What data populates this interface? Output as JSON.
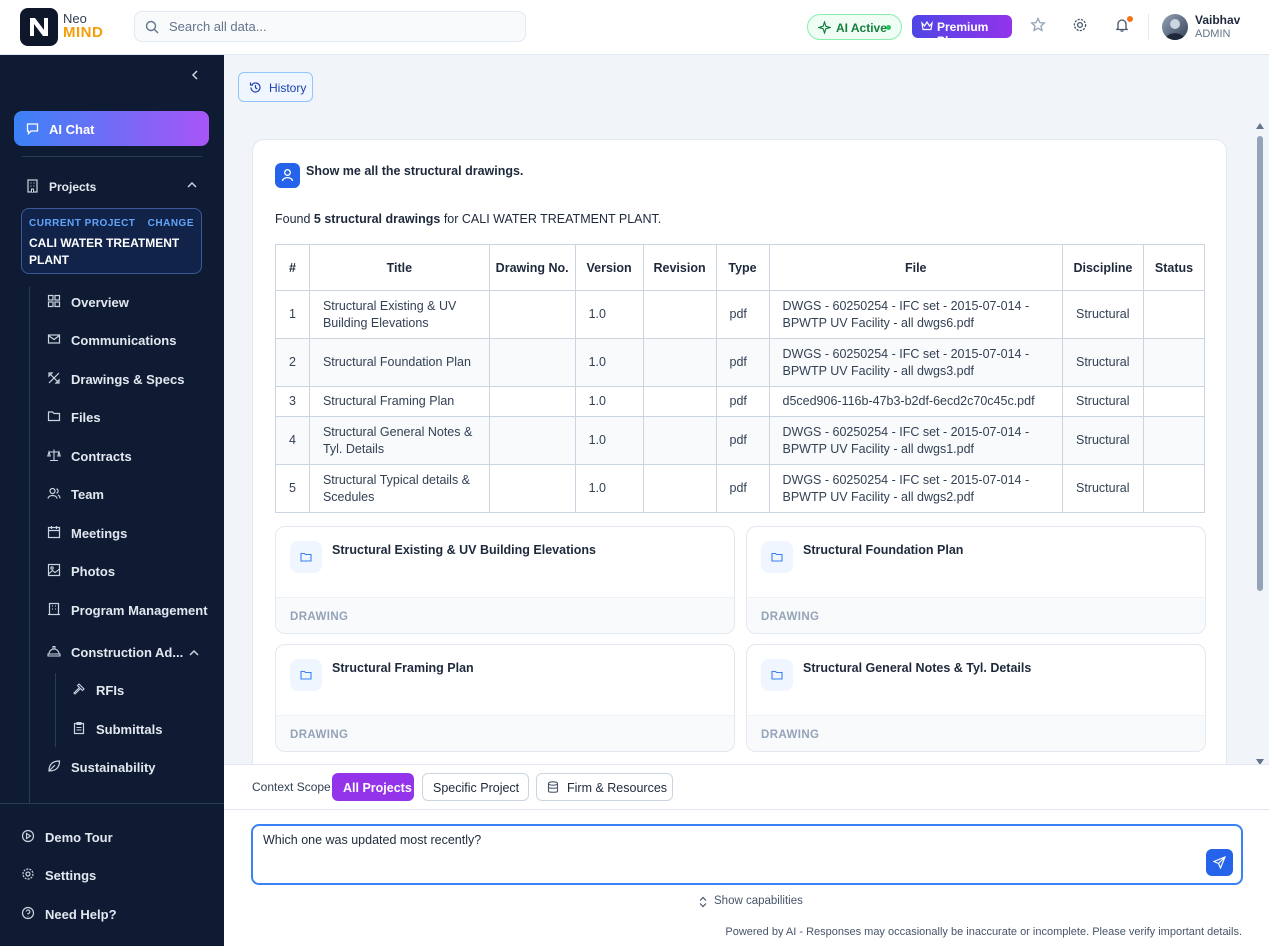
{
  "header": {
    "brand_top": "Neo",
    "brand_bottom": "MIND",
    "search_placeholder": "Search all data...",
    "ai_status": "AI Active",
    "plan": "Premium Plan",
    "user_name": "Vaibhav",
    "user_role": "ADMIN"
  },
  "sidebar": {
    "ai_chat": "AI Chat",
    "projects": "Projects",
    "current_project_label": "CURRENT PROJECT",
    "change_label": "CHANGE",
    "current_project_name": "CALI WATER TREATMENT PLANT",
    "nav": [
      {
        "label": "Overview",
        "icon": "grid-icon"
      },
      {
        "label": "Communications",
        "icon": "mail-icon"
      },
      {
        "label": "Drawings & Specs",
        "icon": "drafting-icon"
      },
      {
        "label": "Files",
        "icon": "folder-icon"
      },
      {
        "label": "Contracts",
        "icon": "scale-icon"
      },
      {
        "label": "Team",
        "icon": "users-icon"
      },
      {
        "label": "Meetings",
        "icon": "calendar-icon"
      },
      {
        "label": "Photos",
        "icon": "image-icon"
      },
      {
        "label": "Program Management",
        "icon": "building-icon"
      },
      {
        "label": "Construction Ad...",
        "icon": "hardhat-icon"
      },
      {
        "label": "RFIs",
        "icon": "hammer-icon"
      },
      {
        "label": "Submittals",
        "icon": "clipboard-icon"
      },
      {
        "label": "Sustainability",
        "icon": "leaf-icon"
      }
    ],
    "bottom": {
      "demo_tour": "Demo Tour",
      "settings": "Settings",
      "help": "Need Help?"
    }
  },
  "main": {
    "history": "History",
    "user_message": "Show me all the structural drawings.",
    "found_prefix": "Found ",
    "found_bold": "5 structural drawings",
    "found_suffix": " for CALI WATER TREATMENT PLANT.",
    "table": {
      "headers": [
        "#",
        "Title",
        "Drawing No.",
        "Version",
        "Revision",
        "Type",
        "File",
        "Discipline",
        "Status"
      ],
      "rows": [
        {
          "num": "1",
          "title": "Structural Existing & UV Building Elevations",
          "drawing_no": "",
          "version": "1.0",
          "revision": "",
          "type": "pdf",
          "file": "DWGS - 60250254 - IFC set - 2015-07-014 - BPWTP UV Facility - all dwgs6.pdf",
          "discipline": "Structural",
          "status": ""
        },
        {
          "num": "2",
          "title": "Structural Foundation Plan",
          "drawing_no": "",
          "version": "1.0",
          "revision": "",
          "type": "pdf",
          "file": "DWGS - 60250254 - IFC set - 2015-07-014 - BPWTP UV Facility - all dwgs3.pdf",
          "discipline": "Structural",
          "status": ""
        },
        {
          "num": "3",
          "title": "Structural Framing Plan",
          "drawing_no": "",
          "version": "1.0",
          "revision": "",
          "type": "pdf",
          "file": "d5ced906-116b-47b3-b2df-6ecd2c70c45c.pdf",
          "discipline": "Structural",
          "status": ""
        },
        {
          "num": "4",
          "title": "Structural General Notes & Tyl. Details",
          "drawing_no": "",
          "version": "1.0",
          "revision": "",
          "type": "pdf",
          "file": "DWGS - 60250254 - IFC set - 2015-07-014 - BPWTP UV Facility - all dwgs1.pdf",
          "discipline": "Structural",
          "status": ""
        },
        {
          "num": "5",
          "title": "Structural Typical details & Scedules",
          "drawing_no": "",
          "version": "1.0",
          "revision": "",
          "type": "pdf",
          "file": "DWGS - 60250254 - IFC set - 2015-07-014 - BPWTP UV Facility - all dwgs2.pdf",
          "discipline": "Structural",
          "status": ""
        }
      ]
    },
    "cards": [
      {
        "title": "Structural Existing & UV Building Elevations",
        "tag": "DRAWING"
      },
      {
        "title": "Structural Foundation Plan",
        "tag": "DRAWING"
      },
      {
        "title": "Structural Framing Plan",
        "tag": "DRAWING"
      },
      {
        "title": "Structural General Notes & Tyl. Details",
        "tag": "DRAWING"
      }
    ]
  },
  "composer": {
    "context_label": "Context Scope",
    "scopes": [
      "All Projects",
      "Specific Project",
      "Firm & Resources"
    ],
    "active_scope": "All Projects",
    "input_value": "Which one was updated most recently?",
    "show_capabilities": "Show capabilities",
    "disclaimer": "Powered by AI - Responses may occasionally be inaccurate or incomplete. Please verify important details."
  },
  "colors": {
    "sidebar_bg": "#0f1b33",
    "accent_purple": "#9333ea",
    "accent_blue": "#2563eb",
    "brand_orange": "#f59e0b"
  }
}
